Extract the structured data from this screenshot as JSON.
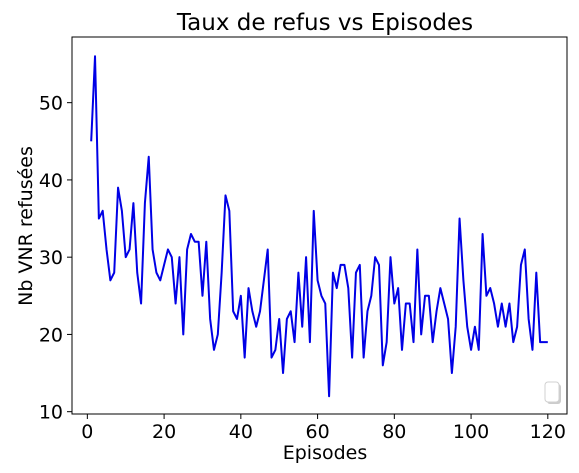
{
  "chart_data": {
    "type": "line",
    "title": "Taux de refus vs Episodes",
    "xlabel": "Episodes",
    "ylabel": "Nb VNR refusées",
    "xlim": [
      -4,
      125
    ],
    "ylim": [
      9.7,
      58.5
    ],
    "xticks": [
      0,
      20,
      40,
      60,
      80,
      100,
      120
    ],
    "yticks": [
      10,
      20,
      30,
      40,
      50
    ],
    "grid": false,
    "legend": "lower-right",
    "line_color": "#0000e6",
    "series": [
      {
        "x": [
          1,
          2,
          3,
          4,
          5,
          6,
          7,
          8,
          9,
          10,
          11,
          12,
          13,
          14,
          15,
          16,
          17,
          18,
          19,
          20,
          21,
          22,
          23,
          24,
          25,
          26,
          27,
          28,
          29,
          30,
          31,
          32,
          33,
          34,
          35,
          36,
          37,
          38,
          39,
          40,
          41,
          42,
          43,
          44,
          45,
          46,
          47,
          48,
          49,
          50,
          51,
          52,
          53,
          54,
          55,
          56,
          57,
          58,
          59,
          60,
          61,
          62,
          63,
          64,
          65,
          66,
          67,
          68,
          69,
          70,
          71,
          72,
          73,
          74,
          75,
          76,
          77,
          78,
          79,
          80,
          81,
          82,
          83,
          84,
          85,
          86,
          87,
          88,
          89,
          90,
          91,
          92,
          93,
          94,
          95,
          96,
          97,
          98,
          99,
          100,
          101,
          102,
          103,
          104,
          105,
          106,
          107,
          108,
          109,
          110,
          111,
          112,
          113,
          114,
          115,
          116,
          117,
          118,
          119,
          120
        ],
        "y": [
          45,
          56,
          35,
          36,
          31,
          27,
          28,
          39,
          36,
          30,
          31,
          37,
          28,
          24,
          37,
          43,
          31,
          28,
          27,
          29,
          31,
          30,
          24,
          30,
          20,
          31,
          33,
          32,
          32,
          25,
          32,
          22,
          18,
          20,
          28,
          38,
          36,
          23,
          22,
          25,
          17,
          26,
          23,
          21,
          23,
          27,
          31,
          17,
          18,
          22,
          15,
          22,
          23,
          19,
          28,
          21,
          30,
          19,
          36,
          27,
          25,
          24,
          12,
          28,
          26,
          29,
          29,
          26,
          17,
          28,
          29,
          17,
          23,
          25,
          30,
          29,
          16,
          19,
          30,
          24,
          26,
          18,
          24,
          24,
          19,
          31,
          20,
          25,
          25,
          19,
          23,
          26,
          24,
          22,
          15,
          21,
          35,
          27,
          21,
          18,
          21,
          18,
          33,
          25,
          26,
          24,
          21,
          24,
          21,
          24,
          19,
          21,
          29,
          31,
          22,
          18,
          28,
          19,
          19,
          19
        ]
      }
    ]
  }
}
